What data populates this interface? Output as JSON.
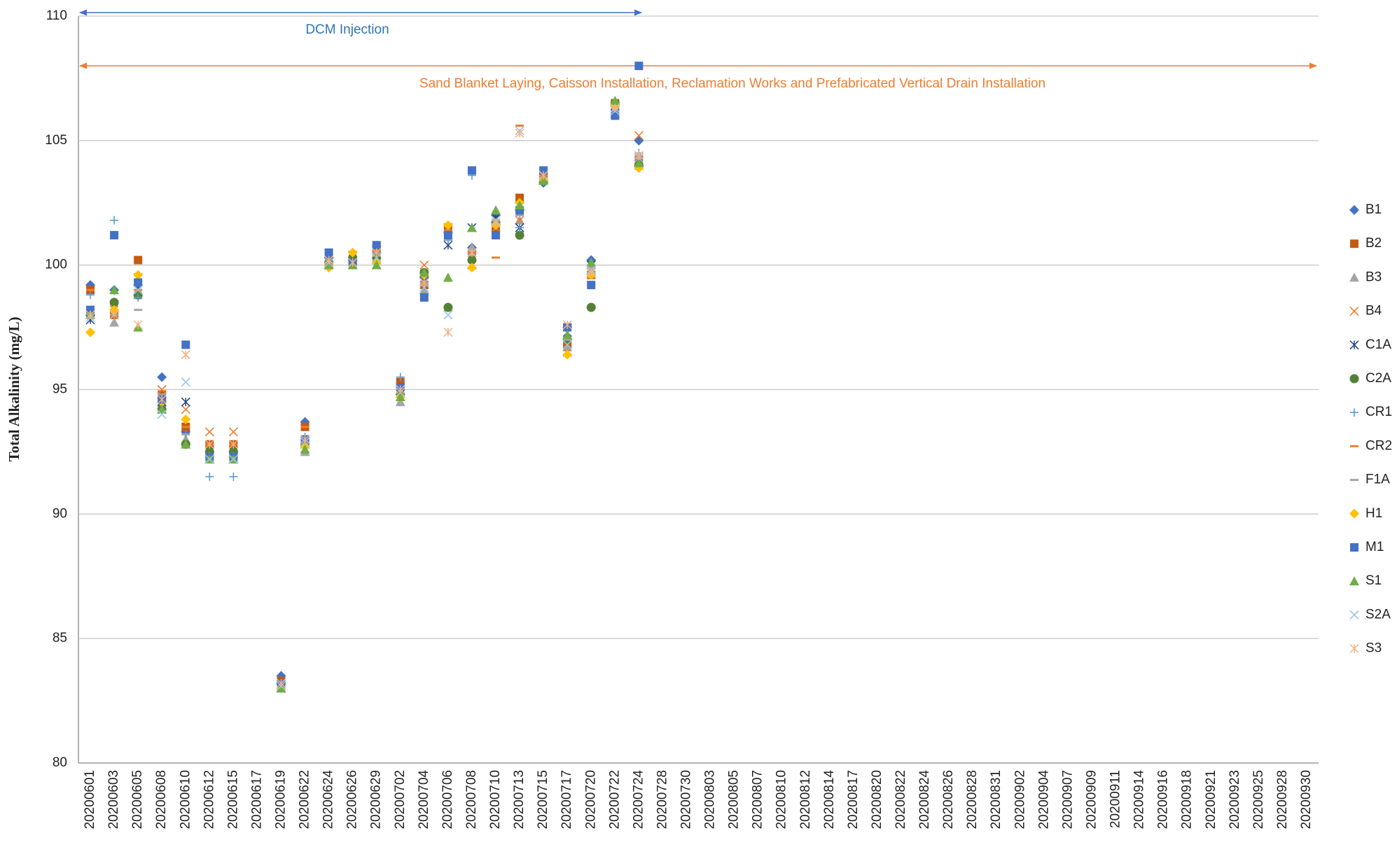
{
  "chart_data": {
    "type": "scatter",
    "y_label": "Total Alkalinity (mg/L)",
    "annotations": [
      "DCM Injection",
      "Sand Blanket  Laying, Caisson Installation, Reclamation Works and Prefabricated Vertical Drain Installation"
    ],
    "categories": [
      "20200601",
      "20200603",
      "20200605",
      "20200608",
      "20200610",
      "20200612",
      "20200615",
      "20200617",
      "20200619",
      "20200622",
      "20200624",
      "20200626",
      "20200629",
      "20200702",
      "20200704",
      "20200706",
      "20200708",
      "20200710",
      "20200713",
      "20200715",
      "20200717",
      "20200720",
      "20200722",
      "20200724",
      "20200728",
      "20200730",
      "20200803",
      "20200805",
      "20200807",
      "20200810",
      "20200812",
      "20200814",
      "20200817",
      "20200820",
      "20200822",
      "20200824",
      "20200826",
      "20200828",
      "20200831",
      "20200902",
      "20200904",
      "20200907",
      "20200909",
      "20200911",
      "20200914",
      "20200916",
      "20200918",
      "20200921",
      "20200923",
      "20200925",
      "20200928",
      "20200930"
    ],
    "ylim": [
      80,
      110
    ],
    "yticks": [
      80,
      85,
      90,
      95,
      100,
      105,
      110
    ],
    "grid": true,
    "legend": "right",
    "series": [
      {
        "name": "B1",
        "color": "#4472c4",
        "marker": "diamond",
        "values": [
          99.2,
          99.0,
          99.2,
          95.5,
          93.3,
          92.5,
          92.5,
          null,
          83.5,
          93.7,
          100.3,
          100.2,
          100.5,
          94.8,
          99.5,
          101.3,
          100.7,
          102.0,
          102.2,
          103.3,
          97.5,
          100.2,
          106.4,
          105.0,
          null,
          null,
          null,
          null,
          null,
          null,
          null,
          null,
          null,
          null,
          null,
          null,
          null,
          null,
          null,
          null,
          null,
          null,
          null,
          null,
          null,
          null,
          null,
          null,
          null,
          null,
          null,
          null
        ]
      },
      {
        "name": "B2",
        "color": "#c55a11",
        "marker": "square",
        "values": [
          99.0,
          98.0,
          100.2,
          94.8,
          93.5,
          92.8,
          92.8,
          null,
          83.3,
          93.5,
          100.0,
          100.2,
          100.7,
          95.3,
          99.2,
          101.5,
          100.5,
          101.5,
          102.7,
          103.6,
          96.8,
          99.6,
          106.5,
          104.2,
          null,
          null,
          null,
          null,
          null,
          null,
          null,
          null,
          null,
          null,
          null,
          null,
          null,
          null,
          null,
          null,
          null,
          null,
          null,
          null,
          null,
          null,
          null,
          null,
          null,
          null,
          null,
          null
        ]
      },
      {
        "name": "B3",
        "color": "#a5a5a5",
        "marker": "triangle",
        "values": [
          98.0,
          97.7,
          98.8,
          94.5,
          93.0,
          92.2,
          92.2,
          null,
          83.0,
          92.5,
          100.0,
          100.0,
          100.2,
          94.5,
          99.0,
          98.3,
          100.7,
          101.8,
          101.8,
          103.5,
          96.7,
          99.8,
          106.2,
          104.0,
          null,
          null,
          null,
          null,
          null,
          null,
          null,
          null,
          null,
          null,
          null,
          null,
          null,
          null,
          null,
          null,
          null,
          null,
          null,
          null,
          null,
          null,
          null,
          null,
          null,
          null,
          null,
          null
        ]
      },
      {
        "name": "B4",
        "color": "#ed7d31",
        "marker": "x",
        "values": [
          98.0,
          98.2,
          99.5,
          95.0,
          94.2,
          93.3,
          93.3,
          null,
          83.0,
          92.8,
          100.0,
          100.4,
          100.0,
          95.0,
          100.0,
          101.5,
          100.0,
          101.5,
          101.8,
          103.4,
          96.5,
          99.7,
          106.4,
          105.2,
          null,
          null,
          null,
          null,
          null,
          null,
          null,
          null,
          null,
          null,
          null,
          null,
          null,
          null,
          null,
          null,
          null,
          null,
          null,
          null,
          null,
          null,
          null,
          null,
          null,
          null,
          null,
          null
        ]
      },
      {
        "name": "C1A",
        "color": "#264478",
        "marker": "star",
        "values": [
          97.8,
          98.0,
          99.0,
          94.5,
          94.5,
          92.5,
          92.5,
          null,
          83.1,
          93.0,
          100.1,
          100.1,
          100.6,
          95.0,
          99.3,
          100.8,
          101.5,
          101.9,
          101.5,
          103.6,
          97.3,
          100.0,
          106.1,
          104.1,
          null,
          null,
          null,
          null,
          null,
          null,
          null,
          null,
          null,
          null,
          null,
          null,
          null,
          null,
          null,
          null,
          null,
          null,
          null,
          null,
          null,
          null,
          null,
          null,
          null,
          null,
          null,
          null
        ]
      },
      {
        "name": "C2A",
        "color": "#548235",
        "marker": "circle",
        "values": [
          98.0,
          98.5,
          98.8,
          94.2,
          92.8,
          92.5,
          92.5,
          null,
          83.2,
          92.8,
          100.1,
          100.3,
          100.3,
          94.8,
          99.7,
          98.3,
          100.2,
          101.7,
          101.2,
          103.4,
          97.0,
          98.3,
          106.5,
          104.0,
          null,
          null,
          null,
          null,
          null,
          null,
          null,
          null,
          null,
          null,
          null,
          null,
          null,
          null,
          null,
          null,
          null,
          null,
          null,
          null,
          null,
          null,
          null,
          null,
          null,
          null,
          null,
          null
        ]
      },
      {
        "name": "CR1",
        "color": "#5b9bd5",
        "marker": "plus",
        "values": [
          98.8,
          101.8,
          98.7,
          94.6,
          93.2,
          91.5,
          91.5,
          null,
          83.1,
          93.1,
          100.0,
          100.0,
          100.5,
          95.5,
          99.2,
          101.0,
          103.6,
          101.6,
          101.5,
          103.5,
          97.5,
          100.0,
          106.2,
          104.5,
          null,
          null,
          null,
          null,
          null,
          null,
          null,
          null,
          null,
          null,
          null,
          null,
          null,
          null,
          null,
          null,
          null,
          null,
          null,
          null,
          null,
          null,
          null,
          null,
          null,
          null,
          null,
          null
        ]
      },
      {
        "name": "CR2",
        "color": "#ed7d31",
        "marker": "dash",
        "values": [
          99.0,
          98.0,
          99.0,
          94.8,
          93.5,
          92.8,
          92.8,
          null,
          83.3,
          93.5,
          100.0,
          100.2,
          100.6,
          95.2,
          99.2,
          101.4,
          100.5,
          100.3,
          105.6,
          103.6,
          97.6,
          99.5,
          106.5,
          104.4,
          null,
          null,
          null,
          null,
          null,
          null,
          null,
          null,
          null,
          null,
          null,
          null,
          null,
          null,
          null,
          null,
          null,
          null,
          null,
          null,
          null,
          null,
          null,
          null,
          null,
          null,
          null,
          null
        ]
      },
      {
        "name": "F1A",
        "color": "#a5a5a5",
        "marker": "dash",
        "values": [
          98.1,
          98.0,
          98.2,
          94.8,
          93.2,
          92.4,
          92.4,
          null,
          83.2,
          93.0,
          100.1,
          100.1,
          100.5,
          95.0,
          99.3,
          101.2,
          100.4,
          101.8,
          102.0,
          103.5,
          97.0,
          99.9,
          106.3,
          104.3,
          null,
          null,
          null,
          null,
          null,
          null,
          null,
          null,
          null,
          null,
          null,
          null,
          null,
          null,
          null,
          null,
          null,
          null,
          null,
          null,
          null,
          null,
          null,
          null,
          null,
          null,
          null,
          null
        ]
      },
      {
        "name": "H1",
        "color": "#ffc000",
        "marker": "diamond",
        "values": [
          97.3,
          98.2,
          99.6,
          94.5,
          93.8,
          92.3,
          92.3,
          null,
          83.0,
          92.7,
          99.9,
          100.5,
          100.1,
          94.7,
          99.6,
          101.6,
          99.9,
          101.6,
          102.5,
          103.4,
          96.4,
          99.6,
          106.4,
          103.9,
          null,
          null,
          null,
          null,
          null,
          null,
          null,
          null,
          null,
          null,
          null,
          null,
          null,
          null,
          null,
          null,
          null,
          null,
          null,
          null,
          null,
          null,
          null,
          null,
          null,
          null,
          null,
          null
        ]
      },
      {
        "name": "M1",
        "color": "#4472c4",
        "marker": "square",
        "values": [
          98.2,
          101.2,
          99.3,
          94.6,
          96.8,
          92.3,
          92.3,
          null,
          83.2,
          93.0,
          100.5,
          100.1,
          100.8,
          95.1,
          98.7,
          101.2,
          103.8,
          101.2,
          102.2,
          103.8,
          97.5,
          99.2,
          106.0,
          108.0,
          null,
          null,
          null,
          null,
          null,
          null,
          null,
          null,
          null,
          null,
          null,
          null,
          null,
          null,
          null,
          null,
          null,
          null,
          null,
          null,
          null,
          null,
          null,
          null,
          null,
          null,
          null,
          null
        ]
      },
      {
        "name": "S1",
        "color": "#70ad47",
        "marker": "triangle",
        "values": [
          98.0,
          99.0,
          97.5,
          94.2,
          92.8,
          92.2,
          92.2,
          null,
          83.0,
          92.6,
          100.0,
          100.0,
          100.0,
          94.7,
          99.7,
          99.5,
          101.5,
          102.2,
          102.4,
          103.4,
          97.2,
          100.1,
          106.6,
          104.1,
          null,
          null,
          null,
          null,
          null,
          null,
          null,
          null,
          null,
          null,
          null,
          null,
          null,
          null,
          null,
          null,
          null,
          null,
          null,
          null,
          null,
          null,
          null,
          null,
          null,
          null,
          null,
          null
        ]
      },
      {
        "name": "S2A",
        "color": "#9dc3e6",
        "marker": "x",
        "values": [
          97.9,
          98.0,
          99.0,
          94.0,
          95.3,
          92.2,
          92.2,
          null,
          83.1,
          92.9,
          100.1,
          100.1,
          100.3,
          94.9,
          99.1,
          98.0,
          100.5,
          101.8,
          105.4,
          103.6,
          96.8,
          99.8,
          106.2,
          104.3,
          null,
          null,
          null,
          null,
          null,
          null,
          null,
          null,
          null,
          null,
          null,
          null,
          null,
          null,
          null,
          null,
          null,
          null,
          null,
          null,
          null,
          null,
          null,
          null,
          null,
          null,
          null,
          null
        ]
      },
      {
        "name": "S3",
        "color": "#f4b183",
        "marker": "star",
        "values": [
          98.0,
          98.0,
          97.6,
          94.6,
          96.4,
          92.8,
          92.8,
          null,
          83.2,
          93.0,
          100.2,
          100.1,
          100.5,
          95.0,
          99.3,
          97.3,
          100.5,
          101.7,
          105.3,
          103.6,
          97.6,
          99.7,
          106.3,
          104.4,
          null,
          null,
          null,
          null,
          null,
          null,
          null,
          null,
          null,
          null,
          null,
          null,
          null,
          null,
          null,
          null,
          null,
          null,
          null,
          null,
          null,
          null,
          null,
          null,
          null,
          null,
          null,
          null
        ]
      }
    ]
  }
}
